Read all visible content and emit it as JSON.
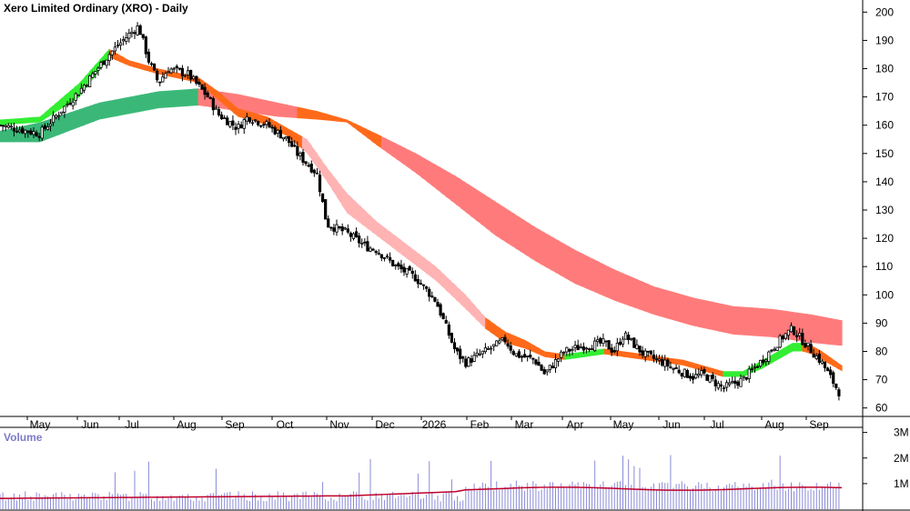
{
  "chart_data": [
    {
      "type": "candlestick",
      "title": "Xero Limited Ordinary (XRO) - Daily",
      "x_tick_labels": [
        "May",
        "Jun",
        "Jul",
        "Aug",
        "Sep",
        "Oct",
        "Nov",
        "Dec",
        "2026",
        "Feb",
        "Mar",
        "Apr",
        "May",
        "Jun",
        "Jul",
        "Aug",
        "Sep"
      ],
      "y_tick_labels": [
        "60",
        "70",
        "80",
        "90",
        "100",
        "110",
        "120",
        "130",
        "140",
        "150",
        "160",
        "170",
        "180",
        "190",
        "200"
      ],
      "ylim": [
        57,
        203
      ],
      "price_path": [
        [
          0,
          160
        ],
        [
          4,
          157
        ],
        [
          8,
          172
        ],
        [
          11,
          185
        ],
        [
          13,
          192
        ],
        [
          14,
          195
        ],
        [
          15,
          183
        ],
        [
          16,
          175
        ],
        [
          17,
          180
        ],
        [
          19,
          178
        ],
        [
          21,
          170
        ],
        [
          22,
          164
        ],
        [
          24,
          159
        ],
        [
          25,
          163
        ],
        [
          27,
          160
        ],
        [
          29,
          155
        ],
        [
          30,
          150
        ],
        [
          32,
          143
        ],
        [
          33,
          125
        ],
        [
          35,
          122
        ],
        [
          37,
          117
        ],
        [
          38,
          116
        ],
        [
          40,
          110
        ],
        [
          42,
          106
        ],
        [
          44,
          98
        ],
        [
          46,
          80
        ],
        [
          47,
          76
        ],
        [
          49,
          80
        ],
        [
          51,
          84
        ],
        [
          52,
          79
        ],
        [
          54,
          77
        ],
        [
          55,
          72
        ],
        [
          57,
          80
        ],
        [
          59,
          82
        ],
        [
          61,
          83
        ],
        [
          62,
          80
        ],
        [
          63,
          86
        ],
        [
          65,
          79
        ],
        [
          67,
          76
        ],
        [
          68,
          74
        ],
        [
          70,
          71
        ],
        [
          71,
          72
        ],
        [
          73,
          67
        ],
        [
          75,
          70
        ],
        [
          77,
          77
        ],
        [
          79,
          85
        ],
        [
          80,
          88
        ],
        [
          81,
          84
        ],
        [
          82,
          80
        ],
        [
          83,
          76
        ],
        [
          84,
          70
        ],
        [
          85,
          64
        ]
      ],
      "fast_ribbon": {
        "upper": [
          [
            0,
            162
          ],
          [
            4,
            163
          ],
          [
            8,
            175
          ],
          [
            11,
            187
          ],
          [
            13,
            183
          ],
          [
            16,
            180
          ],
          [
            20,
            177
          ],
          [
            22,
            172
          ],
          [
            24,
            166
          ],
          [
            27,
            163
          ],
          [
            29,
            159
          ],
          [
            31,
            155
          ],
          [
            33,
            145
          ],
          [
            35,
            136
          ],
          [
            38,
            126
          ],
          [
            41,
            118
          ],
          [
            44,
            110
          ],
          [
            47,
            100
          ],
          [
            49,
            92
          ],
          [
            51,
            87
          ],
          [
            53,
            84
          ],
          [
            55,
            80
          ],
          [
            57,
            79
          ],
          [
            59,
            80
          ],
          [
            61,
            81
          ],
          [
            63,
            80
          ],
          [
            65,
            79
          ],
          [
            67,
            78
          ],
          [
            69,
            77
          ],
          [
            71,
            75
          ],
          [
            73,
            73
          ],
          [
            75,
            73
          ],
          [
            77,
            77
          ],
          [
            79,
            81
          ],
          [
            80,
            83
          ],
          [
            81,
            83
          ],
          [
            82,
            82
          ],
          [
            83,
            80
          ],
          [
            85,
            75
          ]
        ],
        "lower": [
          [
            0,
            160
          ],
          [
            4,
            161
          ],
          [
            8,
            170
          ],
          [
            11,
            184
          ],
          [
            13,
            181
          ],
          [
            16,
            178
          ],
          [
            20,
            175
          ],
          [
            22,
            169
          ],
          [
            24,
            163
          ],
          [
            27,
            160
          ],
          [
            29,
            156
          ],
          [
            31,
            150
          ],
          [
            33,
            140
          ],
          [
            35,
            129
          ],
          [
            38,
            121
          ],
          [
            41,
            113
          ],
          [
            44,
            105
          ],
          [
            47,
            95
          ],
          [
            49,
            88
          ],
          [
            51,
            83
          ],
          [
            53,
            81
          ],
          [
            55,
            78
          ],
          [
            57,
            77
          ],
          [
            59,
            78
          ],
          [
            61,
            79
          ],
          [
            63,
            78
          ],
          [
            65,
            77
          ],
          [
            67,
            76
          ],
          [
            69,
            75
          ],
          [
            71,
            73
          ],
          [
            73,
            71
          ],
          [
            75,
            71
          ],
          [
            77,
            74
          ],
          [
            79,
            78
          ],
          [
            80,
            80
          ],
          [
            81,
            80
          ],
          [
            82,
            79
          ],
          [
            83,
            77
          ],
          [
            85,
            73
          ]
        ],
        "colors": [
          "#ff6a1a",
          "#33ee33",
          "#ffb3b3"
        ]
      },
      "slow_ribbon": {
        "upper": [
          [
            0,
            158
          ],
          [
            4,
            161
          ],
          [
            10,
            168
          ],
          [
            16,
            172
          ],
          [
            20,
            173
          ],
          [
            24,
            171
          ],
          [
            28,
            168
          ],
          [
            32,
            165
          ],
          [
            35,
            162
          ],
          [
            38,
            157
          ],
          [
            42,
            150
          ],
          [
            46,
            142
          ],
          [
            50,
            133
          ],
          [
            54,
            124
          ],
          [
            58,
            116
          ],
          [
            62,
            109
          ],
          [
            66,
            103
          ],
          [
            70,
            99
          ],
          [
            74,
            96
          ],
          [
            78,
            95
          ],
          [
            80,
            94
          ],
          [
            82,
            93
          ],
          [
            85,
            91
          ]
        ],
        "lower": [
          [
            0,
            154
          ],
          [
            4,
            154
          ],
          [
            10,
            162
          ],
          [
            16,
            166
          ],
          [
            20,
            167
          ],
          [
            24,
            165
          ],
          [
            28,
            163
          ],
          [
            32,
            162
          ],
          [
            35,
            161
          ],
          [
            38,
            153
          ],
          [
            42,
            143
          ],
          [
            46,
            132
          ],
          [
            50,
            121
          ],
          [
            54,
            112
          ],
          [
            58,
            104
          ],
          [
            62,
            98
          ],
          [
            66,
            93
          ],
          [
            70,
            89
          ],
          [
            74,
            86
          ],
          [
            78,
            85
          ],
          [
            80,
            84
          ],
          [
            82,
            83
          ],
          [
            85,
            82
          ]
        ],
        "colors": [
          "#ff6a1a",
          "#3bb878",
          "#ff7b7b"
        ]
      },
      "grid": false
    },
    {
      "type": "bar",
      "title": "Volume",
      "y_tick_labels": [
        "1M",
        "2M",
        "3M"
      ],
      "ylim": [
        0,
        3200000
      ],
      "avg_color": "#c0002a",
      "bar_color": "#8a8ad8"
    }
  ]
}
